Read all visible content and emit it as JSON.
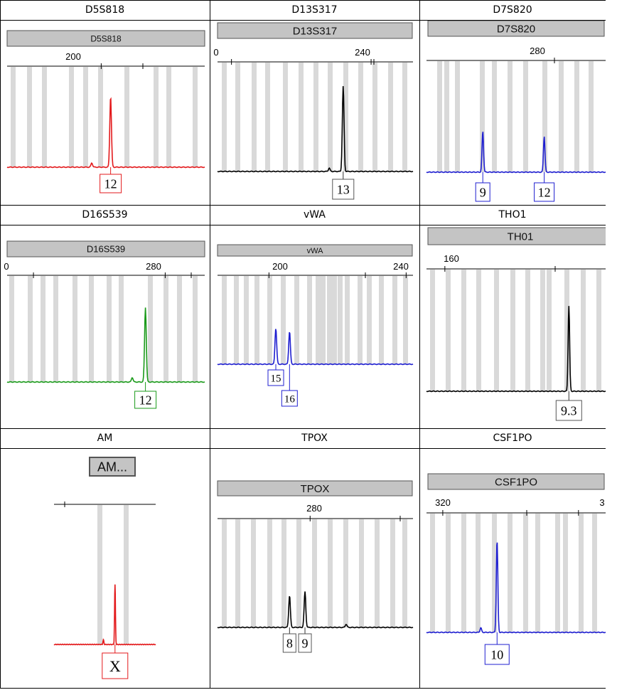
{
  "page": {
    "border_color": "#000000"
  },
  "chart_data": [
    {
      "type": "line",
      "header": "D5S818",
      "marker_name": "D5S818",
      "color": "#e31a1c",
      "axis_ticks": [
        {
          "label": "200",
          "bp": 200
        }
      ],
      "peaks": [
        {
          "bp": 202,
          "height": 1.0,
          "allele": "12"
        },
        {
          "bp": 198,
          "height": 0.06,
          "allele": null
        }
      ]
    },
    {
      "type": "line",
      "header": "D13S317",
      "marker_name": "D13S317",
      "color": "#000000",
      "axis_ticks": [
        {
          "label": "0",
          "bp": 220
        },
        {
          "label": "240",
          "bp": 240
        }
      ],
      "peaks": [
        {
          "bp": 236,
          "height": 1.0,
          "allele": "13"
        },
        {
          "bp": 234,
          "height": 0.04,
          "allele": null
        },
        {
          "bp": 215,
          "height": 0.06,
          "allele": null
        }
      ]
    },
    {
      "type": "line",
      "header": "D7S820",
      "marker_name": "D7S820",
      "color": "#1f1fd0",
      "axis_ticks": [
        {
          "label": "280",
          "bp": 280
        }
      ],
      "peaks": [
        {
          "bp": 266,
          "height": 0.48,
          "allele": "9"
        },
        {
          "bp": 278,
          "height": 0.42,
          "allele": "12"
        }
      ]
    },
    {
      "type": "line",
      "header": "D16S539",
      "marker_name": "D16S539",
      "color": "#1a9a1a",
      "axis_ticks": [
        {
          "label": "0",
          "bp": 260
        },
        {
          "label": "280",
          "bp": 280
        }
      ],
      "peaks": [
        {
          "bp": 277,
          "height": 1.0,
          "allele": "12"
        },
        {
          "bp": 275,
          "height": 0.06,
          "allele": null
        }
      ]
    },
    {
      "type": "line",
      "header": "vWA",
      "marker_name": "vWA",
      "color": "#1f1fd0",
      "axis_ticks": [
        {
          "label": "200",
          "bp": 200
        },
        {
          "label": "240",
          "bp": 240
        }
      ],
      "peaks": [
        {
          "bp": 202,
          "height": 0.46,
          "allele": "15"
        },
        {
          "bp": 206,
          "height": 0.42,
          "allele": "16"
        }
      ]
    },
    {
      "type": "line",
      "header": "THO1",
      "marker_name": "TH01",
      "color": "#000000",
      "axis_ticks": [
        {
          "label": "160",
          "bp": 160
        }
      ],
      "peaks": [
        {
          "bp": 187,
          "height": 1.0,
          "allele": "9.3"
        }
      ]
    },
    {
      "type": "line",
      "header": "AM",
      "marker_name": "AM...",
      "color": "#e31a1c",
      "axis_ticks": [],
      "peaks": [
        {
          "bp": 106,
          "height": 1.0,
          "allele": "X"
        },
        {
          "bp": 102,
          "height": 0.08,
          "allele": null
        }
      ]
    },
    {
      "type": "line",
      "header": "TPOX",
      "marker_name": "TPOX",
      "color": "#000000",
      "axis_ticks": [
        {
          "label": "280",
          "bp": 280
        }
      ],
      "peaks": [
        {
          "bp": 276,
          "height": 0.5,
          "allele": "8"
        },
        {
          "bp": 279,
          "height": 0.56,
          "allele": "9"
        },
        {
          "bp": 287,
          "height": 0.05,
          "allele": null
        }
      ]
    },
    {
      "type": "line",
      "header": "CSF1PO",
      "marker_name": "CSF1PO",
      "color": "#1f1fd0",
      "axis_ticks": [
        {
          "label": "320",
          "bp": 320
        },
        {
          "label": "3",
          "bp": 345
        }
      ],
      "peaks": [
        {
          "bp": 330,
          "height": 1.0,
          "allele": "10"
        },
        {
          "bp": 327,
          "height": 0.05,
          "allele": null
        }
      ]
    }
  ]
}
